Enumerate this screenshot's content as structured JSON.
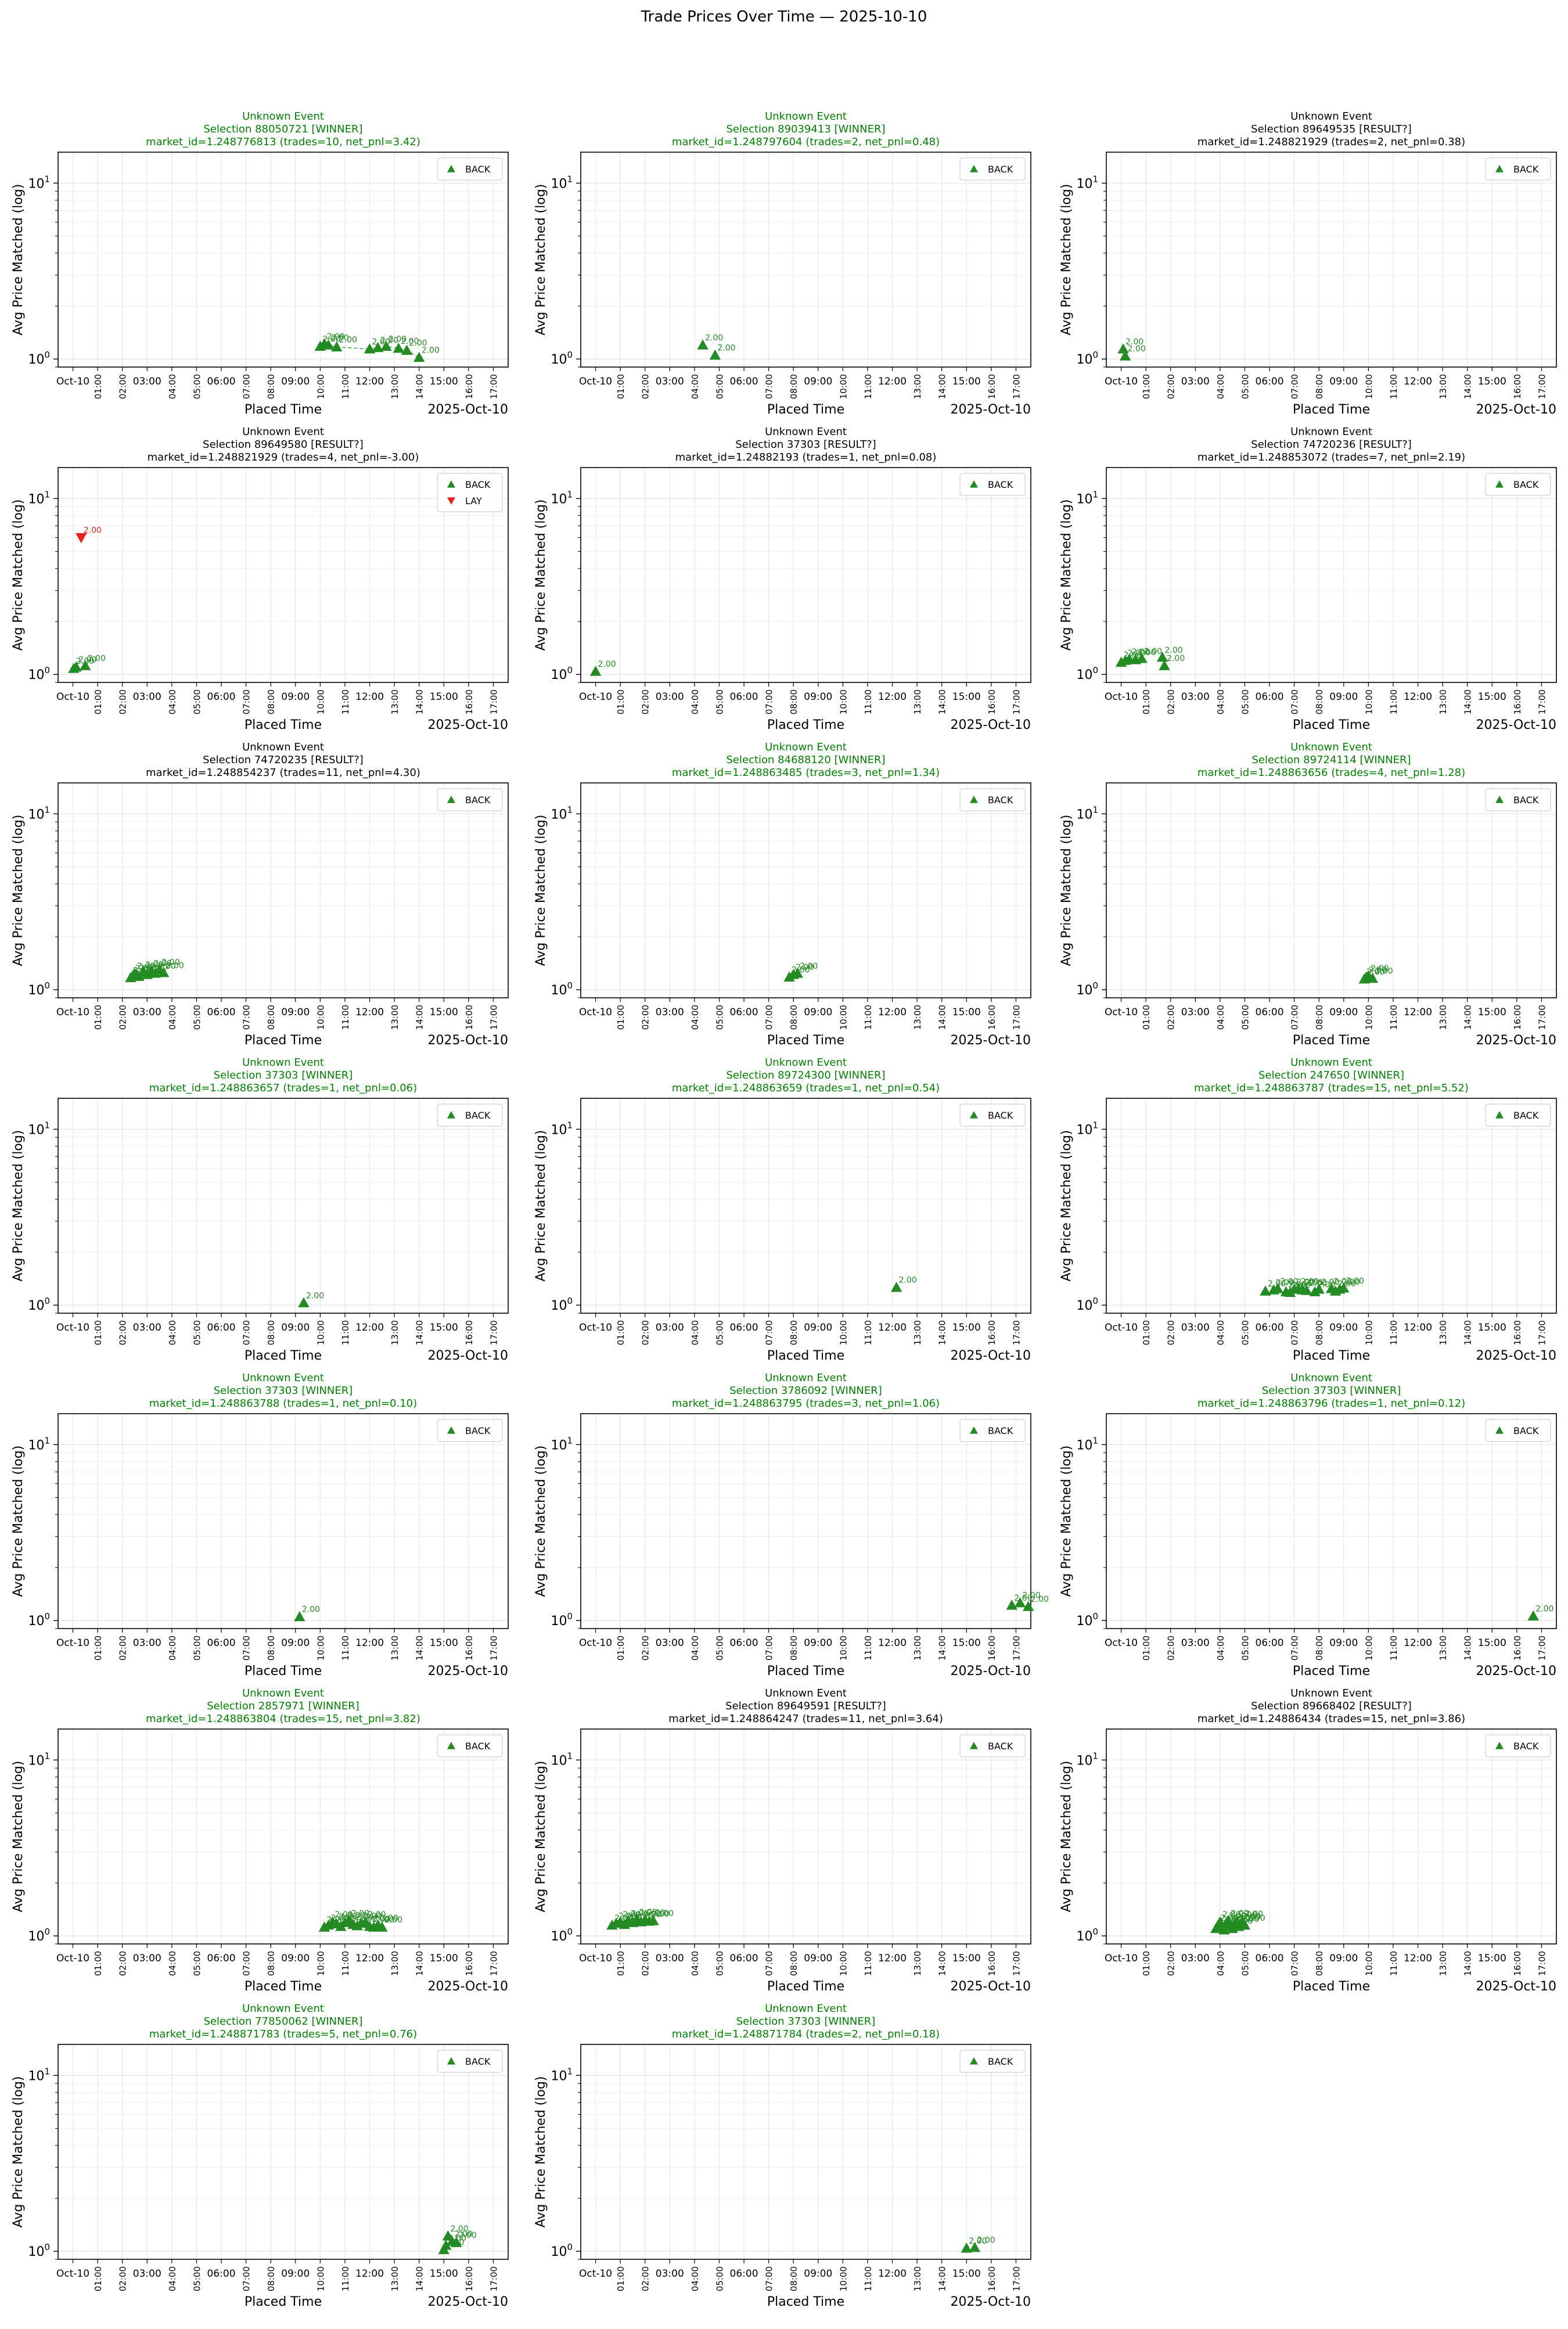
{
  "figure": {
    "title": "Trade Prices Over Time — 2025-10-10"
  },
  "axes": {
    "xlabel": "Placed Time",
    "ylabel": "Avg Price Matched (log)",
    "x_offset_label": "2025-Oct-10",
    "x_first_tick": "Oct-10",
    "x_ticks_horizontal": [
      "03:00",
      "06:00",
      "09:00",
      "12:00",
      "15:00"
    ],
    "x_ticks_rotated": [
      "01:00",
      "02:00",
      "04:00",
      "05:00",
      "07:00",
      "08:00",
      "10:00",
      "11:00",
      "13:00",
      "14:00",
      "16:00",
      "17:00"
    ],
    "y_tick_labels": [
      "10^0",
      "10^1"
    ],
    "y_scale": "log",
    "ylim": [
      0.9,
      15
    ],
    "xlim_hours": [
      -0.6,
      17.6
    ],
    "grid": true
  },
  "colors": {
    "winner": "#008000",
    "neutral": "#000000",
    "back": "#228B22",
    "lay": "#e8211a"
  },
  "legend_labels": {
    "back": "BACK",
    "lay": "LAY"
  },
  "point_label": "2.00",
  "chart_data": [
    {
      "type": "scatter",
      "title": [
        "Unknown Event",
        "Selection 88050721 [WINNER]",
        "market_id=1.248776813 (trades=10, net_pnl=3.42)"
      ],
      "status": "winner",
      "legend": "top-right",
      "connect": true,
      "series": [
        {
          "name": "BACK",
          "x": [
            "2025-10-10 10:00",
            "2025-10-10 10:10",
            "2025-10-10 10:20",
            "2025-10-10 10:40",
            "2025-10-10 12:00",
            "2025-10-10 12:20",
            "2025-10-10 12:40",
            "2025-10-10 13:10",
            "2025-10-10 13:30",
            "2025-10-10 14:00"
          ],
          "y": [
            1.18,
            1.22,
            1.2,
            1.17,
            1.14,
            1.16,
            1.18,
            1.15,
            1.12,
            1.02
          ]
        }
      ]
    },
    {
      "type": "scatter",
      "title": [
        "Unknown Event",
        "Selection 89039413 [WINNER]",
        "market_id=1.248797604 (trades=2, net_pnl=0.48)"
      ],
      "status": "winner",
      "legend": "top-right",
      "series": [
        {
          "name": "BACK",
          "x": [
            "2025-10-10 04:20",
            "2025-10-10 04:50"
          ],
          "y": [
            1.2,
            1.05
          ]
        }
      ]
    },
    {
      "type": "scatter",
      "title": [
        "Unknown Event",
        "Selection 89649535 [RESULT?]",
        "market_id=1.248821929 (trades=2, net_pnl=0.38)"
      ],
      "status": "unknown",
      "legend": "top-right",
      "series": [
        {
          "name": "BACK",
          "x": [
            "2025-10-10 00:05",
            "2025-10-10 00:10"
          ],
          "y": [
            1.14,
            1.04
          ]
        }
      ]
    },
    {
      "type": "scatter",
      "title": [
        "Unknown Event",
        "Selection 89649580 [RESULT?]",
        "market_id=1.248821929 (trades=4, net_pnl=-3.00)"
      ],
      "status": "unknown",
      "legend": "top-right",
      "series": [
        {
          "name": "BACK",
          "x": [
            "2025-10-10 00:02",
            "2025-10-10 00:08",
            "2025-10-10 00:30"
          ],
          "y": [
            1.08,
            1.1,
            1.12
          ]
        },
        {
          "name": "LAY",
          "x": [
            "2025-10-10 00:20"
          ],
          "y": [
            6.0
          ]
        }
      ]
    },
    {
      "type": "scatter",
      "title": [
        "Unknown Event",
        "Selection 37303 [RESULT?]",
        "market_id=1.24882193 (trades=1, net_pnl=0.08)"
      ],
      "status": "unknown",
      "legend": "top-right",
      "series": [
        {
          "name": "BACK",
          "x": [
            "2025-10-10 00:00"
          ],
          "y": [
            1.04
          ]
        }
      ]
    },
    {
      "type": "scatter",
      "title": [
        "Unknown Event",
        "Selection 74720236 [RESULT?]",
        "market_id=1.248853072 (trades=7, net_pnl=2.19)"
      ],
      "status": "unknown",
      "legend": "top-right",
      "series": [
        {
          "name": "BACK",
          "x": [
            "2025-10-10 00:00",
            "2025-10-10 00:10",
            "2025-10-10 00:20",
            "2025-10-10 00:35",
            "2025-10-10 00:50",
            "2025-10-10 01:40",
            "2025-10-10 01:45"
          ],
          "y": [
            1.17,
            1.2,
            1.22,
            1.21,
            1.23,
            1.25,
            1.12
          ]
        }
      ]
    },
    {
      "type": "scatter",
      "title": [
        "Unknown Event",
        "Selection 74720235 [RESULT?]",
        "market_id=1.248854237 (trades=11, net_pnl=4.30)"
      ],
      "status": "unknown",
      "legend": "top-right",
      "series": [
        {
          "name": "BACK",
          "x": [
            "2025-10-10 02:20",
            "2025-10-10 02:25",
            "2025-10-10 02:30",
            "2025-10-10 02:35",
            "2025-10-10 02:40",
            "2025-10-10 02:50",
            "2025-10-10 03:00",
            "2025-10-10 03:10",
            "2025-10-10 03:20",
            "2025-10-10 03:30",
            "2025-10-10 03:40"
          ],
          "y": [
            1.17,
            1.2,
            1.24,
            1.21,
            1.19,
            1.26,
            1.22,
            1.28,
            1.24,
            1.3,
            1.25
          ]
        }
      ]
    },
    {
      "type": "scatter",
      "title": [
        "Unknown Event",
        "Selection 84688120 [WINNER]",
        "market_id=1.248863485 (trades=3, net_pnl=1.34)"
      ],
      "status": "winner",
      "legend": "top-right",
      "series": [
        {
          "name": "BACK",
          "x": [
            "2025-10-10 07:50",
            "2025-10-10 08:00",
            "2025-10-10 08:10"
          ],
          "y": [
            1.18,
            1.22,
            1.24
          ]
        }
      ]
    },
    {
      "type": "scatter",
      "title": [
        "Unknown Event",
        "Selection 89724114 [WINNER]",
        "market_id=1.248863656 (trades=4, net_pnl=1.28)"
      ],
      "status": "winner",
      "legend": "top-right",
      "series": [
        {
          "name": "BACK",
          "x": [
            "2025-10-10 09:50",
            "2025-10-10 09:55",
            "2025-10-10 10:00",
            "2025-10-10 10:10"
          ],
          "y": [
            1.15,
            1.18,
            1.2,
            1.16
          ]
        }
      ]
    },
    {
      "type": "scatter",
      "title": [
        "Unknown Event",
        "Selection 37303 [WINNER]",
        "market_id=1.248863657 (trades=1, net_pnl=0.06)"
      ],
      "status": "winner",
      "legend": "top-right",
      "series": [
        {
          "name": "BACK",
          "x": [
            "2025-10-10 09:20"
          ],
          "y": [
            1.03
          ]
        }
      ]
    },
    {
      "type": "scatter",
      "title": [
        "Unknown Event",
        "Selection 89724300 [WINNER]",
        "market_id=1.248863659 (trades=1, net_pnl=0.54)"
      ],
      "status": "winner",
      "legend": "top-right",
      "series": [
        {
          "name": "BACK",
          "x": [
            "2025-10-10 12:10"
          ],
          "y": [
            1.26
          ]
        }
      ]
    },
    {
      "type": "scatter",
      "title": [
        "Unknown Event",
        "Selection 247650 [WINNER]",
        "market_id=1.248863787 (trades=15, net_pnl=5.52)"
      ],
      "status": "winner",
      "legend": "top-right",
      "series": [
        {
          "name": "BACK",
          "x": [
            "2025-10-10 05:50",
            "2025-10-10 06:10",
            "2025-10-10 06:20",
            "2025-10-10 06:40",
            "2025-10-10 06:50",
            "2025-10-10 07:00",
            "2025-10-10 07:10",
            "2025-10-10 07:20",
            "2025-10-10 07:30",
            "2025-10-10 07:50",
            "2025-10-10 08:00",
            "2025-10-10 08:30",
            "2025-10-10 08:40",
            "2025-10-10 08:50",
            "2025-10-10 09:00"
          ],
          "y": [
            1.2,
            1.22,
            1.24,
            1.19,
            1.18,
            1.23,
            1.24,
            1.22,
            1.21,
            1.19,
            1.23,
            1.24,
            1.2,
            1.23,
            1.25
          ]
        }
      ]
    },
    {
      "type": "scatter",
      "title": [
        "Unknown Event",
        "Selection 37303 [WINNER]",
        "market_id=1.248863788 (trades=1, net_pnl=0.10)"
      ],
      "status": "winner",
      "legend": "top-right",
      "series": [
        {
          "name": "BACK",
          "x": [
            "2025-10-10 09:10"
          ],
          "y": [
            1.05
          ]
        }
      ]
    },
    {
      "type": "scatter",
      "title": [
        "Unknown Event",
        "Selection 3786092 [WINNER]",
        "market_id=1.248863795 (trades=3, net_pnl=1.06)"
      ],
      "status": "winner",
      "legend": "top-right",
      "series": [
        {
          "name": "BACK",
          "x": [
            "2025-10-10 16:50",
            "2025-10-10 17:10",
            "2025-10-10 17:30"
          ],
          "y": [
            1.22,
            1.26,
            1.2
          ]
        }
      ]
    },
    {
      "type": "scatter",
      "title": [
        "Unknown Event",
        "Selection 37303 [WINNER]",
        "market_id=1.248863796 (trades=1, net_pnl=0.12)"
      ],
      "status": "winner",
      "legend": "top-right",
      "series": [
        {
          "name": "BACK",
          "x": [
            "2025-10-10 16:40"
          ],
          "y": [
            1.06
          ]
        }
      ]
    },
    {
      "type": "scatter",
      "title": [
        "Unknown Event",
        "Selection 2857971 [WINNER]",
        "market_id=1.248863804 (trades=15, net_pnl=3.82)"
      ],
      "status": "winner",
      "legend": "top-right",
      "series": [
        {
          "name": "BACK",
          "x": [
            "2025-10-10 10:10",
            "2025-10-10 10:20",
            "2025-10-10 10:30",
            "2025-10-10 10:40",
            "2025-10-10 10:50",
            "2025-10-10 11:00",
            "2025-10-10 11:10",
            "2025-10-10 11:20",
            "2025-10-10 11:30",
            "2025-10-10 11:40",
            "2025-10-10 11:50",
            "2025-10-10 12:00",
            "2025-10-10 12:10",
            "2025-10-10 12:20",
            "2025-10-10 12:30"
          ],
          "y": [
            1.12,
            1.15,
            1.2,
            1.17,
            1.13,
            1.19,
            1.22,
            1.16,
            1.14,
            1.18,
            1.2,
            1.13,
            1.12,
            1.15,
            1.12
          ]
        }
      ]
    },
    {
      "type": "scatter",
      "title": [
        "Unknown Event",
        "Selection 89649591 [RESULT?]",
        "market_id=1.248864247 (trades=11, net_pnl=3.64)"
      ],
      "status": "unknown",
      "legend": "top-right",
      "series": [
        {
          "name": "BACK",
          "x": [
            "2025-10-10 00:40",
            "2025-10-10 00:50",
            "2025-10-10 01:00",
            "2025-10-10 01:10",
            "2025-10-10 01:20",
            "2025-10-10 01:30",
            "2025-10-10 01:40",
            "2025-10-10 01:50",
            "2025-10-10 02:00",
            "2025-10-10 02:10",
            "2025-10-10 02:20"
          ],
          "y": [
            1.15,
            1.18,
            1.2,
            1.16,
            1.22,
            1.19,
            1.24,
            1.2,
            1.23,
            1.21,
            1.22
          ]
        }
      ]
    },
    {
      "type": "scatter",
      "title": [
        "Unknown Event",
        "Selection 89668402 [RESULT?]",
        "market_id=1.24886434 (trades=15, net_pnl=3.86)"
      ],
      "status": "unknown",
      "legend": "top-right",
      "series": [
        {
          "name": "BACK",
          "x": [
            "2025-10-10 03:50",
            "2025-10-10 03:55",
            "2025-10-10 04:00",
            "2025-10-10 04:05",
            "2025-10-10 04:10",
            "2025-10-10 04:15",
            "2025-10-10 04:20",
            "2025-10-10 04:25",
            "2025-10-10 04:30",
            "2025-10-10 04:35",
            "2025-10-10 04:40",
            "2025-10-10 04:45",
            "2025-10-10 04:50",
            "2025-10-10 04:55",
            "2025-10-10 05:00"
          ],
          "y": [
            1.1,
            1.15,
            1.2,
            1.12,
            1.08,
            1.18,
            1.22,
            1.14,
            1.1,
            1.16,
            1.2,
            1.13,
            1.17,
            1.21,
            1.15
          ]
        }
      ]
    },
    {
      "type": "scatter",
      "title": [
        "Unknown Event",
        "Selection 77850062 [WINNER]",
        "market_id=1.248871783 (trades=5, net_pnl=0.76)"
      ],
      "status": "winner",
      "legend": "top-right",
      "series": [
        {
          "name": "BACK",
          "x": [
            "2025-10-10 15:00",
            "2025-10-10 15:05",
            "2025-10-10 15:10",
            "2025-10-10 15:20",
            "2025-10-10 15:30"
          ],
          "y": [
            1.02,
            1.08,
            1.22,
            1.14,
            1.12
          ]
        }
      ]
    },
    {
      "type": "scatter",
      "title": [
        "Unknown Event",
        "Selection 37303 [WINNER]",
        "market_id=1.248871784 (trades=2, net_pnl=0.18)"
      ],
      "status": "winner",
      "legend": "top-right",
      "series": [
        {
          "name": "BACK",
          "x": [
            "2025-10-10 15:00",
            "2025-10-10 15:20"
          ],
          "y": [
            1.04,
            1.05
          ]
        }
      ]
    }
  ]
}
